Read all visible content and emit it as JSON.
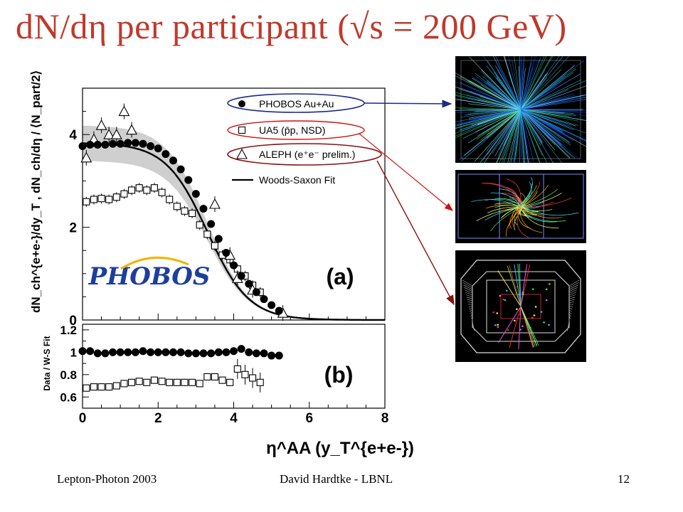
{
  "slide": {
    "title": "dN/dη per participant (√s = 200 GeV)",
    "footer_left": "Lepton-Photon 2003",
    "footer_center": "David Hardtke - LBNL",
    "page_number": "12"
  },
  "images": [
    {
      "name": "phobos-event-display"
    },
    {
      "name": "ua5-event-display"
    },
    {
      "name": "aleph-event-display"
    }
  ],
  "colors": {
    "title": "#c0392b",
    "band": "#cfcfcf",
    "ellipse_blue": "#1a2a8a",
    "ellipse_red": "#d01010"
  },
  "chart_data": [
    {
      "type": "scatter",
      "panel": "(a)",
      "ylabel": "dN_ch^{e+e-}/dy_T , dN_ch/dη / ⟨N_part/2⟩",
      "xlim": [
        0,
        8
      ],
      "ylim": [
        0,
        5
      ],
      "yticks": [
        "0",
        "2",
        "4"
      ],
      "legend_position": "top-right",
      "annotation": "(a)",
      "logo": "PHOBOS",
      "series": [
        {
          "name": "PHOBOS Au+Au",
          "marker": "filled-circle",
          "x": [
            0.0,
            0.2,
            0.4,
            0.6,
            0.8,
            1.0,
            1.2,
            1.4,
            1.6,
            1.8,
            2.0,
            2.2,
            2.4,
            2.6,
            2.8,
            3.0,
            3.2,
            3.4,
            3.6,
            3.8,
            4.0,
            4.2,
            4.4,
            4.6,
            4.8,
            5.0,
            5.2
          ],
          "y": [
            3.75,
            3.78,
            3.78,
            3.78,
            3.8,
            3.8,
            3.82,
            3.82,
            3.8,
            3.75,
            3.7,
            3.58,
            3.44,
            3.25,
            3.02,
            2.72,
            2.4,
            2.07,
            1.75,
            1.45,
            1.18,
            0.95,
            0.78,
            0.6,
            0.45,
            0.32,
            0.2
          ]
        },
        {
          "name": "UA5 (p̄p, NSD)",
          "marker": "open-square",
          "x": [
            0.1,
            0.3,
            0.5,
            0.7,
            0.9,
            1.1,
            1.3,
            1.5,
            1.7,
            1.9,
            2.1,
            2.3,
            2.5,
            2.7,
            2.9,
            3.1,
            3.3,
            3.5,
            3.7,
            3.9,
            4.1,
            4.3,
            4.5,
            4.7
          ],
          "y": [
            2.55,
            2.6,
            2.62,
            2.6,
            2.65,
            2.72,
            2.8,
            2.85,
            2.8,
            2.85,
            2.75,
            2.6,
            2.45,
            2.35,
            2.3,
            2.05,
            1.85,
            1.6,
            1.4,
            1.3,
            1.1,
            0.95,
            0.75,
            0.6
          ]
        },
        {
          "name": "ALEPH (e⁺e⁻ prelim.)",
          "marker": "open-triangle",
          "x": [
            0.1,
            0.3,
            0.5,
            0.7,
            0.9,
            1.1,
            1.3,
            3.5,
            3.9,
            4.1,
            4.5,
            5.3
          ],
          "y": [
            3.5,
            3.9,
            4.2,
            4.0,
            4.0,
            4.5,
            4.1,
            2.5,
            1.4,
            0.9,
            0.65,
            0.15
          ]
        },
        {
          "name": "Woods-Saxon Fit",
          "marker": "line",
          "function": "woods-saxon",
          "params": {
            "A": 3.82,
            "R": 3.3,
            "a": 0.55
          }
        }
      ]
    },
    {
      "type": "scatter",
      "panel": "(b)",
      "ylabel": "Data / W-S Fit",
      "xlabel": "η^AA (y_T^{e+e-})",
      "xlim": [
        0,
        8
      ],
      "ylim": [
        0.5,
        1.25
      ],
      "xticks": [
        "0",
        "2",
        "4",
        "6",
        "8"
      ],
      "yticks": [
        "0.6",
        "0.8",
        "1",
        "1.2"
      ],
      "annotation": "(b)",
      "series": [
        {
          "name": "PHOBOS Au+Au",
          "marker": "filled-circle",
          "x": [
            0.0,
            0.2,
            0.4,
            0.6,
            0.8,
            1.0,
            1.2,
            1.4,
            1.6,
            1.8,
            2.0,
            2.2,
            2.4,
            2.6,
            2.8,
            3.0,
            3.2,
            3.4,
            3.6,
            3.8,
            4.0,
            4.2,
            4.4,
            4.6,
            4.8,
            5.0,
            5.2
          ],
          "y": [
            1.01,
            1.01,
            0.99,
            0.99,
            1.0,
            1.0,
            1.0,
            1.0,
            1.01,
            1.0,
            1.0,
            1.0,
            1.0,
            1.0,
            0.99,
            0.99,
            0.99,
            0.99,
            1.0,
            1.0,
            1.01,
            1.03,
            1.0,
            0.99,
            0.99,
            0.97,
            0.97
          ]
        },
        {
          "name": "UA5 (p̄p, NSD)",
          "marker": "open-square",
          "x": [
            0.1,
            0.3,
            0.5,
            0.7,
            0.9,
            1.1,
            1.3,
            1.5,
            1.7,
            1.9,
            2.1,
            2.3,
            2.5,
            2.7,
            2.9,
            3.1,
            3.3,
            3.5,
            3.7,
            3.9,
            4.1,
            4.3,
            4.5,
            4.7
          ],
          "y": [
            0.68,
            0.69,
            0.69,
            0.69,
            0.7,
            0.72,
            0.73,
            0.74,
            0.73,
            0.75,
            0.74,
            0.73,
            0.73,
            0.73,
            0.73,
            0.72,
            0.78,
            0.78,
            0.75,
            0.73,
            0.85,
            0.8,
            0.77,
            0.73
          ]
        }
      ]
    }
  ]
}
